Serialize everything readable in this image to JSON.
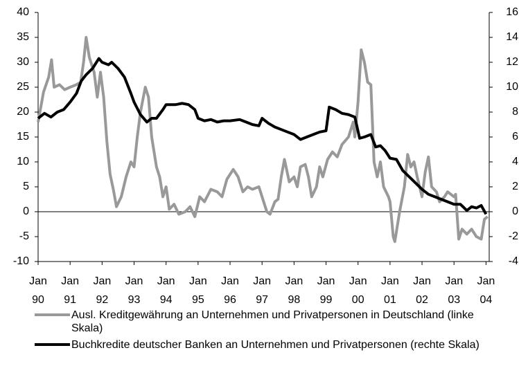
{
  "chart_data": {
    "type": "line",
    "series": [
      {
        "name": "Ausl. Kreditgewährung an Unternehmen und Privatpersonen in Deutschland (linke Skala)",
        "color": "#999999",
        "axis": "y",
        "x": [
          1990.0,
          1990.17,
          1990.33,
          1990.42,
          1990.5,
          1990.67,
          1990.83,
          1991.0,
          1991.2,
          1991.33,
          1991.42,
          1991.5,
          1991.6,
          1991.75,
          1991.85,
          1991.95,
          1992.05,
          1992.15,
          1992.25,
          1992.35,
          1992.45,
          1992.6,
          1992.75,
          1992.9,
          1993.0,
          1993.1,
          1993.2,
          1993.35,
          1993.45,
          1993.55,
          1993.7,
          1993.8,
          1993.9,
          1994.0,
          1994.1,
          1994.25,
          1994.4,
          1994.6,
          1994.75,
          1994.9,
          1995.05,
          1995.2,
          1995.4,
          1995.6,
          1995.75,
          1995.9,
          1996.1,
          1996.25,
          1996.4,
          1996.55,
          1996.7,
          1996.9,
          1997.05,
          1997.15,
          1997.25,
          1997.4,
          1997.5,
          1997.6,
          1997.7,
          1997.85,
          1998.0,
          1998.1,
          1998.2,
          1998.35,
          1998.45,
          1998.55,
          1998.7,
          1998.8,
          1998.9,
          1999.05,
          1999.2,
          1999.35,
          1999.5,
          1999.7,
          1999.85,
          1999.9,
          2000.0,
          2000.1,
          2000.2,
          2000.3,
          2000.4,
          2000.5,
          2000.6,
          2000.7,
          2000.8,
          2000.95,
          2001.0,
          2001.1,
          2001.15,
          2001.3,
          2001.45,
          2001.55,
          2001.65,
          2001.75,
          2001.85,
          2002.0,
          2002.1,
          2002.2,
          2002.3,
          2002.45,
          2002.55,
          2002.7,
          2002.8,
          2002.9,
          2003.0,
          2003.05,
          2003.15,
          2003.25,
          2003.4,
          2003.55,
          2003.7,
          2003.85,
          2003.95,
          2004.05
        ],
        "values": [
          18,
          24,
          27,
          30.5,
          25,
          25.5,
          24.5,
          25,
          25.5,
          26,
          30,
          35,
          31,
          28,
          23,
          28,
          23,
          14,
          7.5,
          4.5,
          1,
          3,
          7,
          10,
          9,
          15,
          20,
          25,
          23,
          15,
          9,
          7,
          3,
          5,
          0.5,
          1.5,
          -0.5,
          0,
          1,
          -1,
          3,
          2,
          4.5,
          4,
          3,
          6.5,
          8.5,
          7,
          4,
          5,
          4.5,
          5,
          2,
          0,
          -0.5,
          2,
          2.5,
          7,
          10.5,
          6,
          7,
          5,
          9,
          9.5,
          7,
          3,
          5,
          9,
          7,
          10.5,
          12,
          11,
          13.5,
          15,
          18,
          15,
          22,
          32.5,
          30,
          26,
          25.5,
          10,
          7,
          10,
          5,
          3,
          2,
          -5,
          -6,
          0,
          5,
          11.5,
          9,
          10,
          7,
          3,
          8,
          11,
          5,
          4,
          2,
          3,
          4,
          3.5,
          3,
          3.5,
          -5.5,
          -3.5,
          -4.5,
          -3.5,
          -5,
          -5.5,
          -1.5,
          -1
        ]
      },
      {
        "name": "Buchkredite deutscher Banken an Unternehmen und Privatpersonen (rechte Skala)",
        "color": "#000000",
        "axis": "y2",
        "x": [
          1990.0,
          1990.2,
          1990.4,
          1990.6,
          1990.8,
          1991.0,
          1991.2,
          1991.35,
          1991.5,
          1991.7,
          1991.9,
          1992.0,
          1992.2,
          1992.3,
          1992.5,
          1992.7,
          1992.9,
          1993.0,
          1993.2,
          1993.4,
          1993.55,
          1993.7,
          1993.9,
          1994.0,
          1994.3,
          1994.5,
          1994.7,
          1994.9,
          1995.0,
          1995.2,
          1995.4,
          1995.6,
          1995.8,
          1996.0,
          1996.3,
          1996.5,
          1996.7,
          1996.9,
          1997.0,
          1997.2,
          1997.4,
          1997.6,
          1997.8,
          1998.0,
          1998.2,
          1998.4,
          1998.6,
          1998.8,
          1999.0,
          1999.1,
          1999.3,
          1999.5,
          1999.7,
          1999.9,
          2000.05,
          2000.2,
          2000.4,
          2000.55,
          2000.7,
          2000.85,
          2001.0,
          2001.2,
          2001.4,
          2001.6,
          2001.8,
          2002.0,
          2002.2,
          2002.4,
          2002.6,
          2002.8,
          2003.0,
          2003.2,
          2003.4,
          2003.55,
          2003.7,
          2003.85,
          2004.0
        ],
        "values": [
          7.5,
          7.9,
          7.6,
          8,
          8.2,
          8.8,
          9.5,
          10.5,
          11,
          11.5,
          12.3,
          12,
          11.8,
          12,
          11.5,
          10.8,
          9.5,
          8.8,
          7.8,
          7.2,
          7.5,
          7.5,
          8.2,
          8.6,
          8.6,
          8.7,
          8.6,
          8.2,
          7.5,
          7.3,
          7.4,
          7.2,
          7.3,
          7.3,
          7.4,
          7.2,
          7.0,
          6.9,
          7.5,
          7.1,
          6.8,
          6.6,
          6.4,
          6.2,
          5.8,
          6.0,
          6.2,
          6.4,
          6.5,
          8.4,
          8.2,
          7.9,
          7.8,
          7.6,
          5.9,
          6.0,
          6.2,
          5.2,
          5.3,
          4.9,
          4.3,
          4.2,
          3.3,
          2.8,
          2.3,
          1.8,
          1.4,
          1.2,
          1.0,
          0.8,
          0.6,
          0.6,
          0.1,
          0.4,
          0.3,
          0.5,
          -0.2
        ]
      }
    ],
    "xlim": [
      1990,
      2004.1
    ],
    "xticks": [
      {
        "value": 1990,
        "label": "Jan 90"
      },
      {
        "value": 1991,
        "label": "Jan 91"
      },
      {
        "value": 1992,
        "label": "Jan 92"
      },
      {
        "value": 1993,
        "label": "Jan 93"
      },
      {
        "value": 1994,
        "label": "Jan 94"
      },
      {
        "value": 1995,
        "label": "Jan 95"
      },
      {
        "value": 1996,
        "label": "Jan 96"
      },
      {
        "value": 1997,
        "label": "Jan 97"
      },
      {
        "value": 1998,
        "label": "Jan 98"
      },
      {
        "value": 1999,
        "label": "Jan 99"
      },
      {
        "value": 2000,
        "label": "Jan 00"
      },
      {
        "value": 2001,
        "label": "Jan 01"
      },
      {
        "value": 2002,
        "label": "Jan 02"
      },
      {
        "value": 2003,
        "label": "Jan 03"
      },
      {
        "value": 2004,
        "label": "Jan 04"
      }
    ],
    "ylim": [
      -10,
      40
    ],
    "yticks": [
      -10,
      -5,
      0,
      5,
      10,
      15,
      20,
      25,
      30,
      35,
      40
    ],
    "y2lim": [
      -4,
      16
    ],
    "y2ticks": [
      -4,
      -2,
      0,
      2,
      4,
      6,
      8,
      10,
      12,
      14,
      16
    ]
  }
}
